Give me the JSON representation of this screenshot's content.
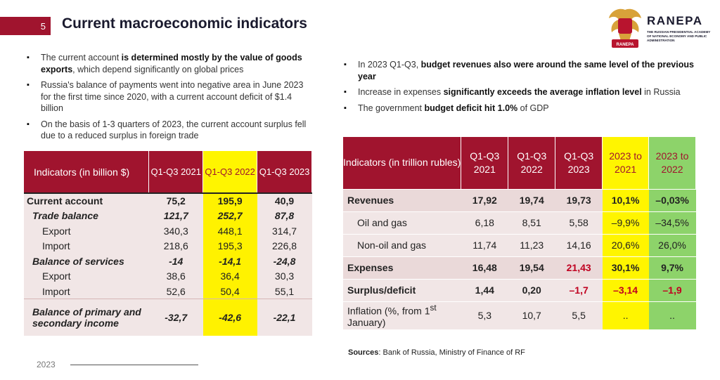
{
  "header": {
    "page_number": "5",
    "title": "Current macroeconomic indicators"
  },
  "logo": {
    "brand": "RANEPA",
    "subtitle": "THE RUSSIAN PRESIDENTIAL ACADEMY OF NATIONAL ECONOMY AND PUBLIC ADMINISTRATION",
    "emblem_text": "RANEPA",
    "colors": {
      "gold": "#d8a23a",
      "red": "#b8142e"
    }
  },
  "left_bullets": [
    {
      "pre": "The current account ",
      "bold": "is determined mostly by the value of goods exports",
      "post": ", which depend significantly on global prices"
    },
    {
      "pre": "Russia's balance of payments went into negative area in June 2023 for the first time since 2020, with a current account deficit of $1.4 billion",
      "bold": "",
      "post": ""
    },
    {
      "pre": "On the basis of 1-3 quarters of 2023, the current account surplus fell due to a reduced surplus in foreign trade",
      "bold": "",
      "post": ""
    }
  ],
  "right_bullets": [
    {
      "pre": "In 2023 Q1-Q3, ",
      "bold": "budget revenues also were around the same level of the previous year",
      "post": ""
    },
    {
      "pre": "Increase in expenses ",
      "bold": "significantly exceeds the average inflation level",
      "post": " in Russia"
    },
    {
      "pre": "The government ",
      "bold": "budget deficit hit 1.0%",
      "post": " of GDP"
    }
  ],
  "table_bop": {
    "headers": [
      "Indicators (in billion $)",
      "Q1-Q3 2021",
      "Q1-Q3 2022",
      "Q1-Q3 2023"
    ],
    "rows": [
      {
        "label": "Current account",
        "values": [
          "75,2",
          "195,9",
          "40,9"
        ]
      },
      {
        "label": "Trade balance",
        "values": [
          "121,7",
          "252,7",
          "87,8"
        ]
      },
      {
        "label": "Export",
        "values": [
          "340,3",
          "448,1",
          "314,7"
        ]
      },
      {
        "label": "Import",
        "values": [
          "218,6",
          "195,3",
          "226,8"
        ]
      },
      {
        "label": "Balance of services",
        "values": [
          "-14",
          "-14,1",
          "-24,8"
        ]
      },
      {
        "label": "Export",
        "values": [
          "38,6",
          "36,4",
          "30,3"
        ]
      },
      {
        "label": "Import",
        "values": [
          "52,6",
          "50,4",
          "55,1"
        ]
      },
      {
        "label": "Balance of primary and secondary income",
        "values": [
          "-32,7",
          "-42,6",
          "-22,1"
        ]
      }
    ]
  },
  "table_budget": {
    "headers": [
      "Indicators (in trillion rubles)",
      "Q1-Q3 2021",
      "Q1-Q3 2022",
      "Q1-Q3 2023",
      "2023 to 2021",
      "2023 to 2022"
    ],
    "rows": [
      {
        "label": "Revenues",
        "values": [
          "17,92",
          "19,74",
          "19,73",
          "10,1%",
          "–0,03%"
        ]
      },
      {
        "label": "Oil and gas",
        "values": [
          "6,18",
          "8,51",
          "5,58",
          "–9,9%",
          "–34,5%"
        ]
      },
      {
        "label": "Non-oil and gas",
        "values": [
          "11,74",
          "11,23",
          "14,16",
          "20,6%",
          "26,0%"
        ]
      },
      {
        "label": "Expenses",
        "values": [
          "16,48",
          "19,54",
          "21,43",
          "30,1%",
          "9,7%"
        ]
      },
      {
        "label": "Surplus/deficit",
        "values": [
          "1,44",
          "0,20",
          "–1,7",
          "–3,14",
          "–1,9"
        ]
      },
      {
        "label_pre": "Inflation (%, from 1",
        "label_sup": "st",
        "label_post": " January)",
        "values": [
          "5,3",
          "10,7",
          "5,5",
          "..",
          ".."
        ]
      }
    ]
  },
  "sources": {
    "label": "Sources",
    "text": ": Bank of Russia, Ministry of Finance of RF"
  },
  "footer": {
    "year": "2023"
  }
}
